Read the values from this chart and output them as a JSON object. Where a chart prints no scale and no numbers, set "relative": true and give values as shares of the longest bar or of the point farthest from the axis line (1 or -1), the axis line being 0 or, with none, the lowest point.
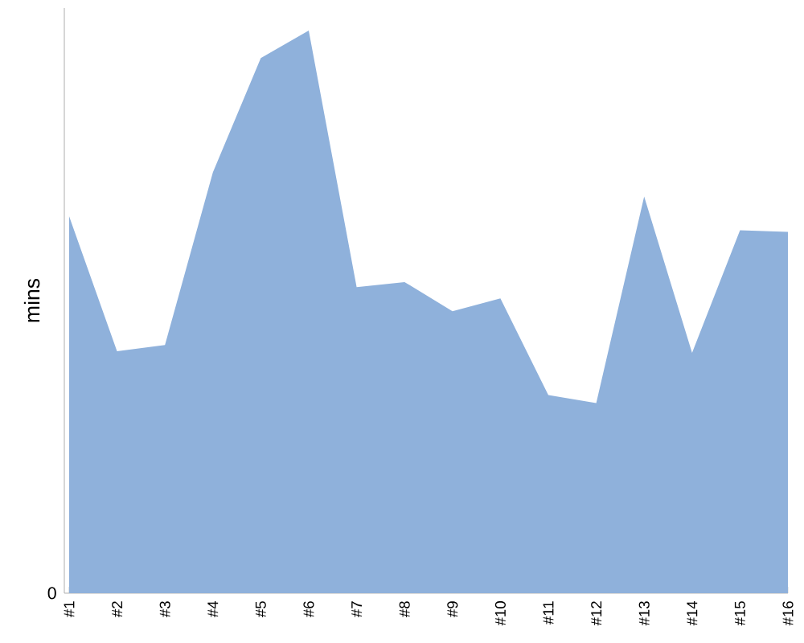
{
  "chart_data": {
    "type": "area",
    "ylabel": "mins",
    "relative": true,
    "categories": [
      "#1",
      "#2",
      "#3",
      "#4",
      "#5",
      "#6",
      "#7",
      "#8",
      "#9",
      "#10",
      "#11",
      "#12",
      "#13",
      "#14",
      "#15",
      "#16"
    ],
    "series": [
      {
        "color": "#8fb1db",
        "values": [
          0.67,
          0.43,
          0.441,
          0.748,
          0.951,
          1,
          0.544,
          0.553,
          0.501,
          0.524,
          0.352,
          0.338,
          0.705,
          0.427,
          0.645,
          0.642
        ]
      }
    ],
    "annotations": [
      "0"
    ]
  }
}
